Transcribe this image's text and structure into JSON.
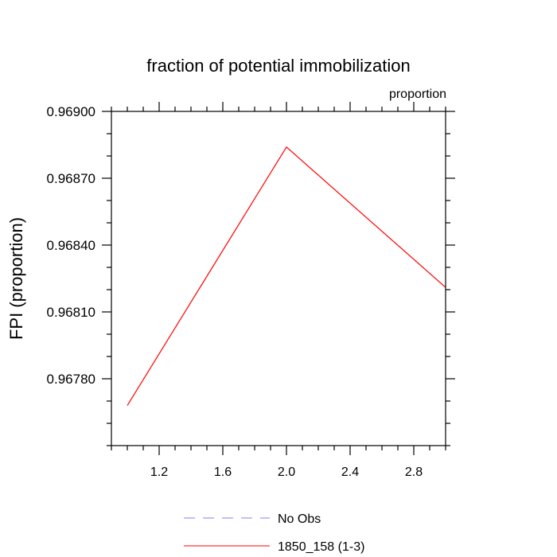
{
  "chart_data": {
    "type": "line",
    "title": "fraction of potential immobilization",
    "units_label": "proportion",
    "ylabel": "FPI  (proportion)",
    "xlabel": "",
    "xlim": [
      0.9,
      3.0
    ],
    "ylim": [
      0.9675,
      0.969
    ],
    "x_ticks": [
      1.2,
      1.6,
      2.0,
      2.4,
      2.8
    ],
    "x_tick_labels": [
      "1.2",
      "1.6",
      "2.0",
      "2.4",
      "2.8"
    ],
    "y_ticks": [
      0.9678,
      0.9681,
      0.9684,
      0.9687,
      0.969
    ],
    "y_tick_labels": [
      "0.96780",
      "0.96810",
      "0.96840",
      "0.96870",
      "0.96900"
    ],
    "grid": false,
    "legend_position": "bottom-center",
    "series": [
      {
        "name": "No Obs",
        "color": "#8080ff",
        "dash": "dashed",
        "x": [],
        "y": []
      },
      {
        "name": "1850_158 (1-3)",
        "color": "#ff0000",
        "dash": "solid",
        "x": [
          1.0,
          2.0,
          3.0
        ],
        "y": [
          0.96768,
          0.96884,
          0.96821
        ]
      }
    ]
  }
}
